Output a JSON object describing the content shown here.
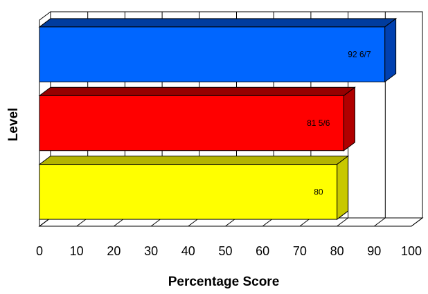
{
  "chart_data": {
    "type": "bar",
    "orientation": "horizontal",
    "style": "3d",
    "title": "",
    "xlabel": "Percentage Score",
    "ylabel": "Level",
    "xlim": [
      0,
      100
    ],
    "x_ticks": [
      "0",
      "10",
      "20",
      "30",
      "40",
      "50",
      "60",
      "70",
      "80",
      "90",
      "100"
    ],
    "grid": true,
    "legend": "none",
    "bars": [
      {
        "value": 92.857,
        "label": "92 6/7",
        "color": "#0066FF",
        "side_color": "#0040B0",
        "top_color": "#003C9E"
      },
      {
        "value": 81.833,
        "label": "81 5/6",
        "color": "#FF0000",
        "side_color": "#B00000",
        "top_color": "#960000"
      },
      {
        "value": 80,
        "label": "80",
        "color": "#FFFF00",
        "side_color": "#C8C800",
        "top_color": "#B4B400"
      }
    ]
  }
}
